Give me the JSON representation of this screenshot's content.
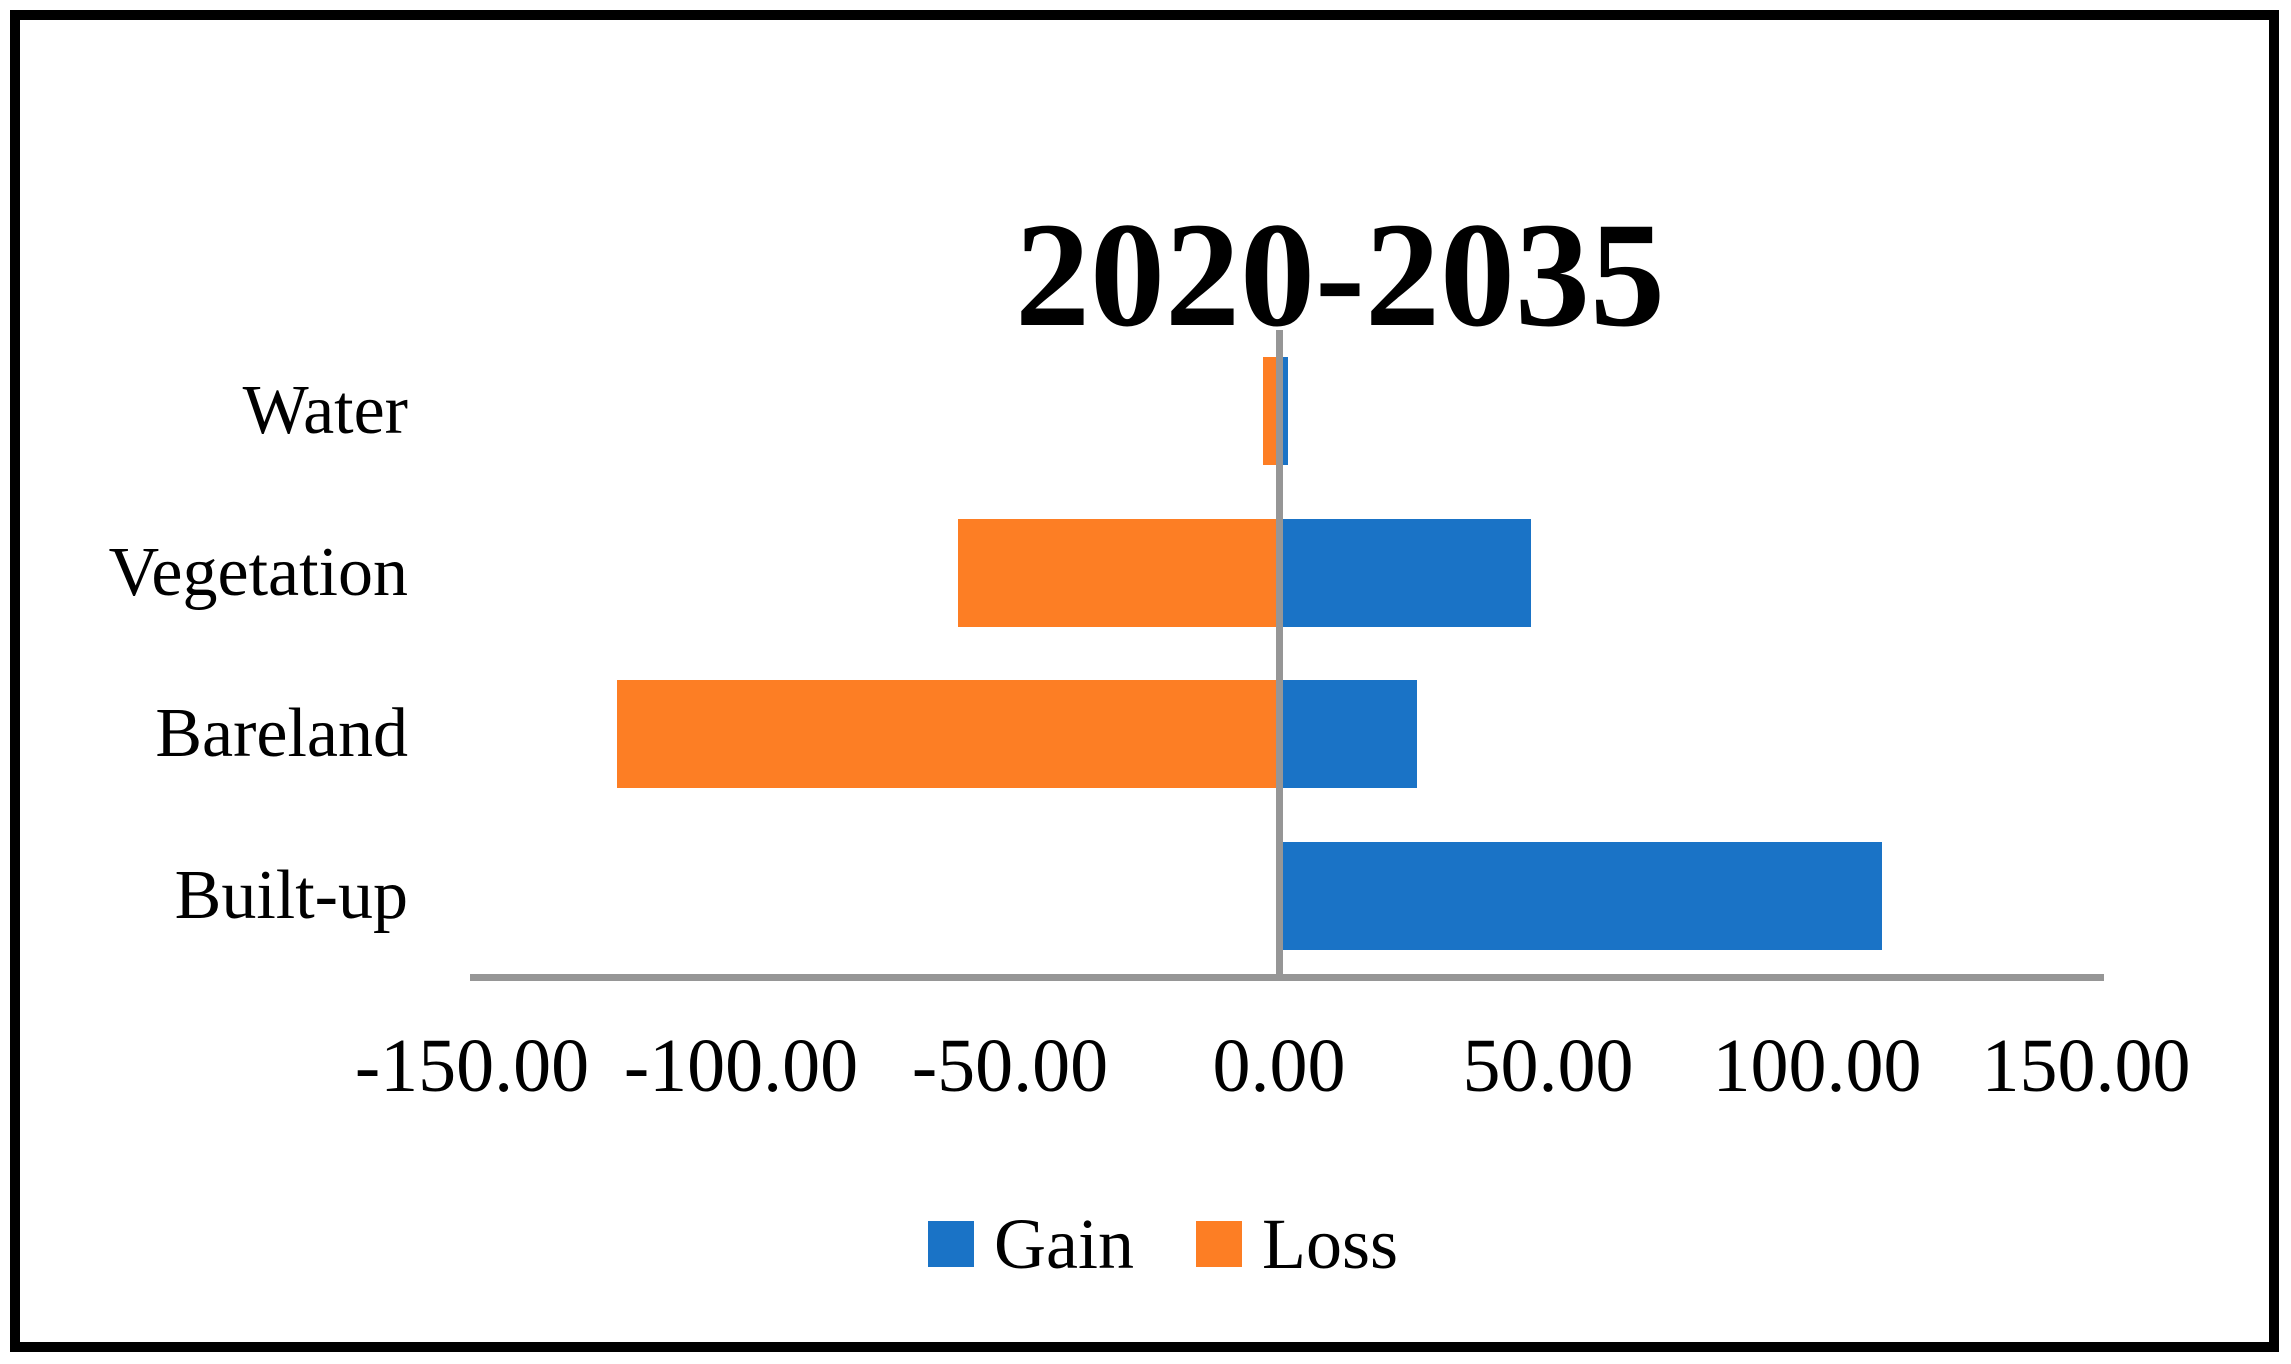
{
  "title": "2020-2035",
  "chart_data": {
    "type": "bar",
    "orientation": "horizontal",
    "title": "2020-2035",
    "categories": [
      "Water",
      "Vegetation",
      "Bareland",
      "Built-up"
    ],
    "series": [
      {
        "name": "Gain",
        "color": "#1a73c6",
        "values": [
          1.6,
          46.9,
          25.7,
          112.1
        ]
      },
      {
        "name": "Loss",
        "color": "#fd7e24",
        "values": [
          -3.0,
          -59.6,
          -123.0,
          0
        ]
      }
    ],
    "xlabel": "",
    "ylabel": "",
    "xlim": [
      -150,
      150
    ],
    "x_ticks": [
      -150,
      -100,
      -50,
      0,
      50,
      100,
      150
    ],
    "x_tick_labels": [
      "-150.00",
      "-100.00",
      "-50.00",
      "0.00",
      "50.00",
      "100.00",
      "150.00"
    ],
    "grid": false,
    "legend_position": "bottom-center",
    "axis_color": "#969696",
    "text_color": "#000000",
    "frame_color": "#000000",
    "background_color": "#ffffff"
  }
}
